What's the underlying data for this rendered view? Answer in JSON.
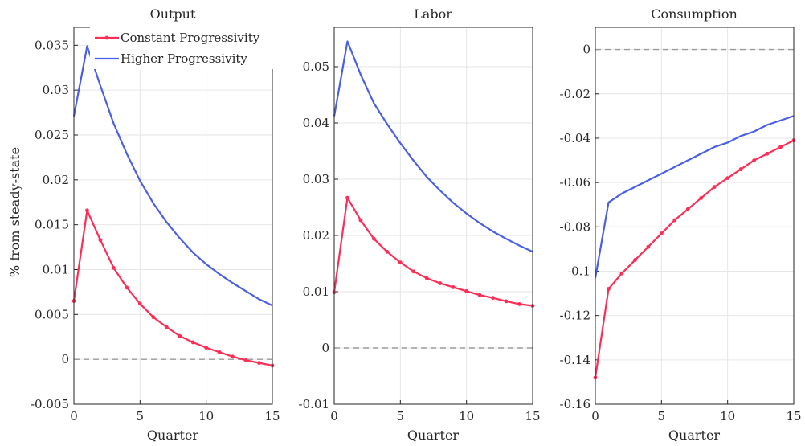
{
  "colors": {
    "constant": "#ff2d55",
    "higher": "#4a5fe8",
    "axis": "#262626",
    "grid": "#e6e6e6",
    "zero_line": "#9a9a9a"
  },
  "chart_data": [
    {
      "type": "line",
      "title": "Output",
      "xlabel": "Quarter",
      "ylabel": "% from steady-state",
      "xlim": [
        0,
        15
      ],
      "ylim": [
        -0.005,
        0.037
      ],
      "xticks": [
        0,
        5,
        10,
        15
      ],
      "xtick_labels": [
        "0",
        "5",
        "10",
        "15"
      ],
      "yticks": [
        -0.005,
        0,
        0.005,
        0.01,
        0.015,
        0.02,
        0.025,
        0.03,
        0.035
      ],
      "ytick_labels": [
        "-0.005",
        "0",
        "0.005",
        "0.01",
        "0.015",
        "0.02",
        "0.025",
        "0.03",
        "0.035"
      ],
      "grid": true,
      "reference_line": 0,
      "legend_location": "top-right",
      "x": [
        0,
        1,
        2,
        3,
        4,
        5,
        6,
        7,
        8,
        9,
        10,
        11,
        12,
        13,
        14,
        15
      ],
      "series": [
        {
          "name": "Constant Progressivity",
          "color": "#ff2d55",
          "markers": true,
          "values": [
            0.0065,
            0.0166,
            0.0133,
            0.0102,
            0.008,
            0.0062,
            0.0047,
            0.0036,
            0.0026,
            0.0019,
            0.0013,
            0.0008,
            0.0003,
            -0.0001,
            -0.0004,
            -0.0007
          ]
        },
        {
          "name": "Higher Progressivity",
          "color": "#4a5fe8",
          "markers": false,
          "values": [
            0.0271,
            0.0349,
            0.0305,
            0.0263,
            0.0229,
            0.0199,
            0.0174,
            0.0153,
            0.0135,
            0.0119,
            0.0106,
            0.0095,
            0.0085,
            0.0076,
            0.0067,
            0.006
          ]
        }
      ]
    },
    {
      "type": "line",
      "title": "Labor",
      "xlabel": "Quarter",
      "ylabel": "",
      "xlim": [
        0,
        15
      ],
      "ylim": [
        -0.01,
        0.057
      ],
      "xticks": [
        0,
        5,
        10,
        15
      ],
      "xtick_labels": [
        "0",
        "5",
        "10",
        "15"
      ],
      "yticks": [
        -0.01,
        0,
        0.01,
        0.02,
        0.03,
        0.04,
        0.05
      ],
      "ytick_labels": [
        "-0.01",
        "0",
        "0.01",
        "0.02",
        "0.03",
        "0.04",
        "0.05"
      ],
      "grid": true,
      "reference_line": 0,
      "x": [
        0,
        1,
        2,
        3,
        4,
        5,
        6,
        7,
        8,
        9,
        10,
        11,
        12,
        13,
        14,
        15
      ],
      "series": [
        {
          "color": "#ff2d55",
          "markers": true,
          "values": [
            0.0099,
            0.0267,
            0.0227,
            0.0194,
            0.0171,
            0.0152,
            0.0136,
            0.0124,
            0.0115,
            0.0108,
            0.0101,
            0.0094,
            0.0089,
            0.0083,
            0.0078,
            0.0075
          ]
        },
        {
          "color": "#4a5fe8",
          "markers": false,
          "values": [
            0.0412,
            0.0545,
            0.0486,
            0.0435,
            0.0398,
            0.0364,
            0.0333,
            0.0304,
            0.028,
            0.0258,
            0.0239,
            0.0222,
            0.0207,
            0.0194,
            0.0182,
            0.0171
          ]
        }
      ]
    },
    {
      "type": "line",
      "title": "Consumption",
      "xlabel": "Quarter",
      "ylabel": "",
      "xlim": [
        0,
        15
      ],
      "ylim": [
        -0.16,
        0.01
      ],
      "xticks": [
        0,
        5,
        10,
        15
      ],
      "xtick_labels": [
        "0",
        "5",
        "10",
        "15"
      ],
      "yticks": [
        -0.16,
        -0.14,
        -0.12,
        -0.1,
        -0.08,
        -0.06,
        -0.04,
        -0.02,
        0
      ],
      "ytick_labels": [
        "-0.16",
        "-0.14",
        "-0.12",
        "-0.1",
        "-0.08",
        "-0.06",
        "-0.04",
        "-0.02",
        "0"
      ],
      "grid": true,
      "reference_line": 0,
      "x": [
        0,
        1,
        2,
        3,
        4,
        5,
        6,
        7,
        8,
        9,
        10,
        11,
        12,
        13,
        14,
        15
      ],
      "series": [
        {
          "color": "#ff2d55",
          "markers": true,
          "values": [
            -0.148,
            -0.108,
            -0.101,
            -0.095,
            -0.089,
            -0.083,
            -0.077,
            -0.072,
            -0.067,
            -0.062,
            -0.058,
            -0.054,
            -0.05,
            -0.047,
            -0.044,
            -0.041
          ]
        },
        {
          "color": "#4a5fe8",
          "markers": false,
          "values": [
            -0.103,
            -0.069,
            -0.065,
            -0.062,
            -0.059,
            -0.056,
            -0.053,
            -0.05,
            -0.047,
            -0.044,
            -0.042,
            -0.039,
            -0.037,
            -0.034,
            -0.032,
            -0.03
          ]
        }
      ]
    }
  ]
}
